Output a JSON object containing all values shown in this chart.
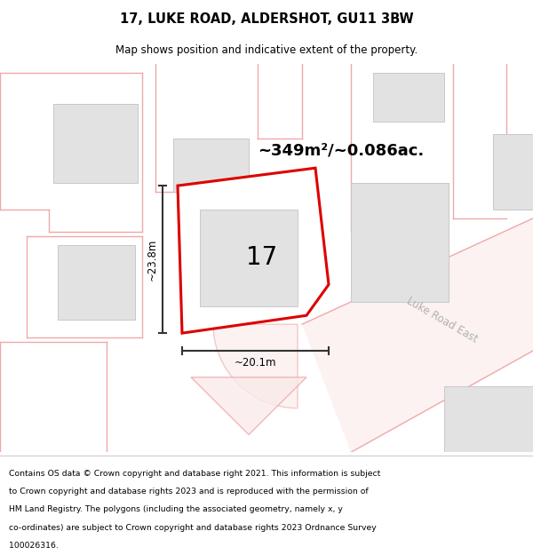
{
  "title": "17, LUKE ROAD, ALDERSHOT, GU11 3BW",
  "subtitle": "Map shows position and indicative extent of the property.",
  "footer_lines": [
    "Contains OS data © Crown copyright and database right 2021. This information is subject",
    "to Crown copyright and database rights 2023 and is reproduced with the permission of",
    "HM Land Registry. The polygons (including the associated geometry, namely x, y",
    "co-ordinates) are subject to Crown copyright and database rights 2023 Ordnance Survey",
    "100026316."
  ],
  "area_label": "~349m²/~0.086ac.",
  "width_label": "~20.1m",
  "height_label": "~23.8m",
  "plot_number": "17",
  "bg_color": "#ffffff",
  "plot_fill": "#ffffff",
  "plot_border": "#dd0000",
  "road_label": "Luke Road East",
  "grey_fill": "#e2e2e2",
  "grey_stroke": "#c8c8c8",
  "pink_stroke": "#f0a8a8",
  "road_fill": "#faeaea",
  "dim_color": "#333333",
  "road_label_color": "#b0b0b0",
  "title_fontsize": 10.5,
  "subtitle_fontsize": 8.5,
  "footer_fontsize": 6.7,
  "area_fontsize": 13,
  "number_fontsize": 20,
  "dim_fontsize": 8.5,
  "road_label_fontsize": 8.5,
  "road_label_rotation": -30
}
